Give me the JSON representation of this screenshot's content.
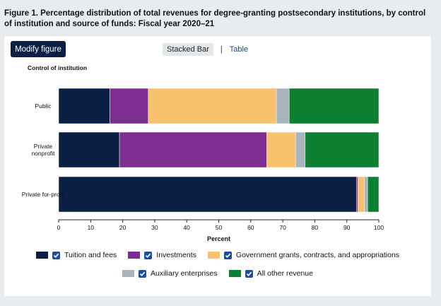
{
  "figure": {
    "title": "Figure 1. Percentage distribution of total revenues for degree-granting postsecondary institutions, by control of institution and source of funds: Fiscal year 2020–21"
  },
  "controls": {
    "modify_label": "Modify figure",
    "tab_stacked": "Stacked Bar",
    "separator": "|",
    "tab_table": "Table"
  },
  "colors": {
    "page_bg": "#e8ecef",
    "button_bg": "#0b1f45",
    "checkbox": "#1f4f9b"
  },
  "chart_data": {
    "type": "bar",
    "orientation": "horizontal",
    "stacked": true,
    "ylabel": "Control of institution",
    "xlabel": "Percent",
    "xlim": [
      0,
      100
    ],
    "xticks": [
      0,
      10,
      20,
      30,
      40,
      50,
      60,
      70,
      80,
      90,
      100
    ],
    "categories": [
      {
        "lines": [
          "Public"
        ]
      },
      {
        "lines": [
          "Private",
          "nonprofit"
        ]
      },
      {
        "lines": [
          "Private for-profit"
        ]
      }
    ],
    "series": [
      {
        "name": "Tuition and fees",
        "color": "#0b1f45",
        "values": [
          16,
          19,
          93
        ]
      },
      {
        "name": "Investments",
        "color": "#7b2d90",
        "values": [
          12,
          46,
          0.5
        ]
      },
      {
        "name": "Government grants, contracts, and appropriations",
        "color": "#f7c26b",
        "values": [
          40,
          9,
          2
        ]
      },
      {
        "name": "Auxiliary enterprises",
        "color": "#a9b5bd",
        "values": [
          4,
          3,
          1
        ]
      },
      {
        "name": "All other revenue",
        "color": "#0c7f30",
        "values": [
          28,
          23,
          3.5
        ]
      }
    ],
    "legend_placement": "bottom",
    "grid": false
  }
}
